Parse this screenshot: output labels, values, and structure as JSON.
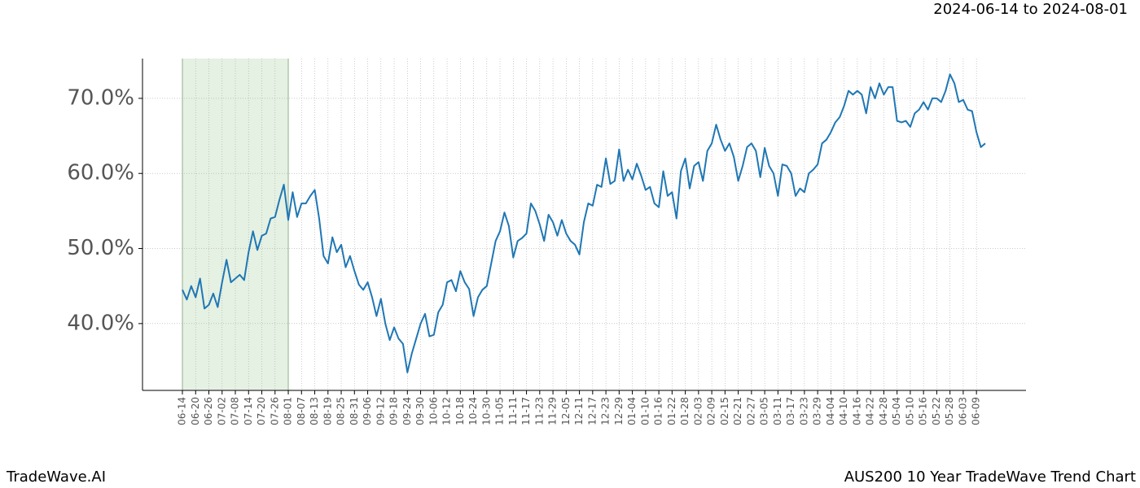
{
  "chart_data": {
    "type": "line",
    "subtitle": "2024-06-14 to 2024-08-01",
    "footer_left": "TradeWave.AI",
    "footer_right": "AUS200 10 Year TradeWave Trend Chart",
    "color": "#1f77b4",
    "highlight": [
      "06-14",
      "08-01"
    ],
    "highlight_color": "#e5f1e3",
    "grid": true,
    "ylim": [
      31.1,
      75.3
    ],
    "yticks": [
      {
        "value": 40,
        "label": "40.0%"
      },
      {
        "value": 50,
        "label": "50.0%"
      },
      {
        "value": 60,
        "label": "60.0%"
      },
      {
        "value": 70,
        "label": "70.0%"
      }
    ],
    "categories": [
      "06-14",
      null,
      null,
      "06-20",
      null,
      null,
      "06-26",
      null,
      null,
      "07-02",
      null,
      null,
      "07-08",
      null,
      null,
      "07-14",
      null,
      null,
      "07-20",
      null,
      null,
      "07-26",
      null,
      null,
      "08-01",
      null,
      null,
      "08-07",
      null,
      null,
      "08-13",
      null,
      null,
      "08-19",
      null,
      null,
      "08-25",
      null,
      null,
      "08-31",
      null,
      null,
      "09-06",
      null,
      null,
      "09-12",
      null,
      null,
      "09-18",
      null,
      null,
      "09-24",
      null,
      null,
      "09-30",
      null,
      null,
      "10-06",
      null,
      null,
      "10-12",
      null,
      null,
      "10-18",
      null,
      null,
      "10-24",
      null,
      null,
      "10-30",
      null,
      null,
      "11-05",
      null,
      null,
      "11-11",
      null,
      null,
      "11-17",
      null,
      null,
      "11-23",
      null,
      null,
      "11-29",
      null,
      null,
      "12-05",
      null,
      null,
      "12-11",
      null,
      null,
      "12-17",
      null,
      null,
      "12-23",
      null,
      null,
      "12-29",
      null,
      null,
      "01-04",
      null,
      null,
      "01-10",
      null,
      null,
      "01-16",
      null,
      null,
      "01-22",
      null,
      null,
      "01-28",
      null,
      null,
      "02-03",
      null,
      null,
      "02-09",
      null,
      null,
      "02-15",
      null,
      null,
      "02-21",
      null,
      null,
      "02-27",
      null,
      null,
      "03-05",
      null,
      null,
      "03-11",
      null,
      null,
      "03-17",
      null,
      null,
      "03-23",
      null,
      null,
      "03-29",
      null,
      null,
      "04-04",
      null,
      null,
      "04-10",
      null,
      null,
      "04-16",
      null,
      null,
      "04-22",
      null,
      null,
      "04-28",
      null,
      null,
      "05-04",
      null,
      null,
      "05-10",
      null,
      null,
      "05-16",
      null,
      null,
      "05-22",
      null,
      null,
      "05-28",
      null,
      null,
      "06-03",
      null,
      null,
      "06-09",
      null,
      null
    ],
    "values": [
      44.5,
      43.2,
      45,
      43.5,
      46,
      42,
      42.5,
      44,
      42.2,
      45.5,
      48.5,
      45.5,
      46,
      46.5,
      45.8,
      49.5,
      52.3,
      49.8,
      51.7,
      52,
      54,
      54.2,
      56.5,
      58.5,
      53.8,
      57.5,
      54.2,
      56,
      56,
      57,
      57.8,
      54,
      49,
      48,
      51.5,
      49.5,
      50.5,
      47.5,
      49,
      47,
      45.2,
      44.5,
      45.5,
      43.5,
      41,
      43.3,
      40,
      37.8,
      39.5,
      38,
      37.3,
      33.5,
      36,
      38,
      40,
      41.3,
      38.3,
      38.5,
      41.5,
      42.5,
      45.5,
      45.8,
      44.3,
      47,
      45.5,
      44.6,
      41,
      43.5,
      44.5,
      45,
      48,
      51,
      52.3,
      54.8,
      53,
      48.8,
      51,
      51.4,
      52,
      56,
      55,
      53.2,
      51,
      54.5,
      53.5,
      51.7,
      53.8,
      52,
      51,
      50.5,
      49.2,
      53.5,
      56,
      55.7,
      58.5,
      58.2,
      62,
      58.6,
      59,
      63.2,
      59,
      60.5,
      59.2,
      61.3,
      59.7,
      57.8,
      58.2,
      56,
      55.5,
      60.3,
      57,
      57.5,
      54,
      60.3,
      62,
      58,
      61,
      61.5,
      59,
      63,
      64,
      66.5,
      64.5,
      63,
      64,
      62.2,
      59,
      61,
      63.5,
      64,
      63,
      59.5,
      63.4,
      61,
      60,
      57,
      61.2,
      61,
      60,
      57,
      58,
      57.5,
      60,
      60.5,
      61.2,
      64,
      64.5,
      65.5,
      66.8,
      67.5,
      69,
      71,
      70.5,
      71,
      70.5,
      68,
      71.5,
      70,
      72,
      70.5,
      71.5,
      71.5,
      67,
      66.8,
      67,
      66.2,
      68,
      68.5,
      69.5,
      68.5,
      70,
      70,
      69.5,
      71,
      73.2,
      72,
      69.5,
      69.8,
      68.5,
      68.3,
      65.5,
      63.5,
      64
    ]
  }
}
